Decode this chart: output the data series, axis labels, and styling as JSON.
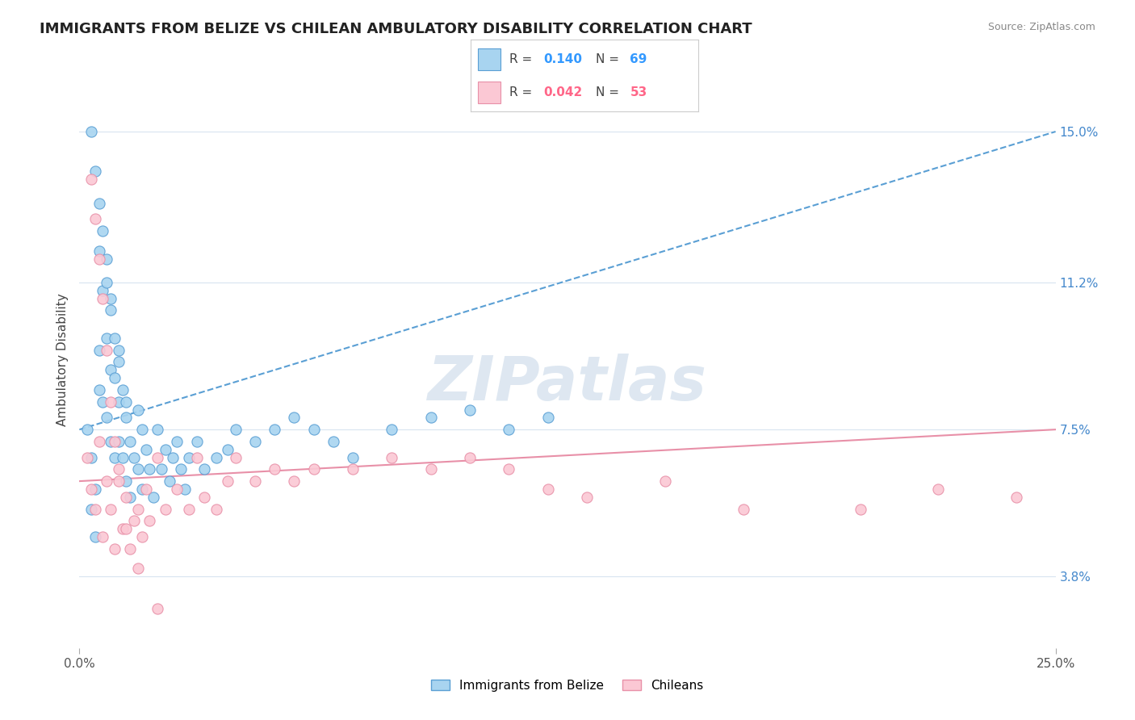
{
  "title": "IMMIGRANTS FROM BELIZE VS CHILEAN AMBULATORY DISABILITY CORRELATION CHART",
  "source": "Source: ZipAtlas.com",
  "ylabel": "Ambulatory Disability",
  "xlim": [
    0.0,
    0.25
  ],
  "ylim": [
    0.02,
    0.165
  ],
  "yticks": [
    0.038,
    0.075,
    0.112,
    0.15
  ],
  "ytick_labels": [
    "3.8%",
    "7.5%",
    "11.2%",
    "15.0%"
  ],
  "xticks": [
    0.0,
    0.25
  ],
  "xtick_labels": [
    "0.0%",
    "25.0%"
  ],
  "series1_label": "Immigrants from Belize",
  "series1_R": "0.140",
  "series1_N": "69",
  "series1_color": "#a8d4f0",
  "series1_edge": "#5a9fd4",
  "series2_label": "Chileans",
  "series2_R": "0.042",
  "series2_N": "53",
  "series2_color": "#fbc8d4",
  "series2_edge": "#e890a8",
  "bg_color": "#ffffff",
  "watermark": "ZIPatlas",
  "watermark_color": "#c8d8e8",
  "grid_color": "#d8e4f0",
  "title_fontsize": 13,
  "tick_fontsize": 11,
  "axis_label_fontsize": 11,
  "trend1_color": "#5a9fd4",
  "trend2_color": "#e890a8",
  "series1_x": [
    0.002,
    0.003,
    0.003,
    0.004,
    0.004,
    0.005,
    0.005,
    0.005,
    0.006,
    0.006,
    0.007,
    0.007,
    0.007,
    0.008,
    0.008,
    0.008,
    0.009,
    0.009,
    0.01,
    0.01,
    0.01,
    0.011,
    0.011,
    0.012,
    0.012,
    0.013,
    0.013,
    0.014,
    0.015,
    0.015,
    0.016,
    0.016,
    0.017,
    0.018,
    0.019,
    0.02,
    0.021,
    0.022,
    0.023,
    0.024,
    0.025,
    0.026,
    0.027,
    0.028,
    0.03,
    0.032,
    0.035,
    0.038,
    0.04,
    0.045,
    0.05,
    0.055,
    0.06,
    0.065,
    0.07,
    0.08,
    0.09,
    0.1,
    0.11,
    0.12,
    0.003,
    0.004,
    0.005,
    0.006,
    0.007,
    0.008,
    0.009,
    0.01,
    0.012
  ],
  "series1_y": [
    0.075,
    0.068,
    0.055,
    0.06,
    0.048,
    0.12,
    0.095,
    0.085,
    0.11,
    0.082,
    0.112,
    0.098,
    0.078,
    0.105,
    0.09,
    0.072,
    0.088,
    0.068,
    0.095,
    0.082,
    0.072,
    0.085,
    0.068,
    0.078,
    0.062,
    0.072,
    0.058,
    0.068,
    0.08,
    0.065,
    0.075,
    0.06,
    0.07,
    0.065,
    0.058,
    0.075,
    0.065,
    0.07,
    0.062,
    0.068,
    0.072,
    0.065,
    0.06,
    0.068,
    0.072,
    0.065,
    0.068,
    0.07,
    0.075,
    0.072,
    0.075,
    0.078,
    0.075,
    0.072,
    0.068,
    0.075,
    0.078,
    0.08,
    0.075,
    0.078,
    0.15,
    0.14,
    0.132,
    0.125,
    0.118,
    0.108,
    0.098,
    0.092,
    0.082
  ],
  "series2_x": [
    0.002,
    0.003,
    0.004,
    0.005,
    0.006,
    0.007,
    0.008,
    0.009,
    0.01,
    0.011,
    0.012,
    0.013,
    0.014,
    0.015,
    0.016,
    0.017,
    0.018,
    0.02,
    0.022,
    0.025,
    0.028,
    0.03,
    0.032,
    0.035,
    0.038,
    0.04,
    0.045,
    0.05,
    0.055,
    0.06,
    0.07,
    0.08,
    0.09,
    0.1,
    0.11,
    0.12,
    0.13,
    0.15,
    0.17,
    0.2,
    0.22,
    0.24,
    0.003,
    0.004,
    0.005,
    0.006,
    0.007,
    0.008,
    0.009,
    0.01,
    0.012,
    0.015,
    0.02
  ],
  "series2_y": [
    0.068,
    0.06,
    0.055,
    0.072,
    0.048,
    0.062,
    0.055,
    0.045,
    0.065,
    0.05,
    0.058,
    0.045,
    0.052,
    0.055,
    0.048,
    0.06,
    0.052,
    0.068,
    0.055,
    0.06,
    0.055,
    0.068,
    0.058,
    0.055,
    0.062,
    0.068,
    0.062,
    0.065,
    0.062,
    0.065,
    0.065,
    0.068,
    0.065,
    0.068,
    0.065,
    0.06,
    0.058,
    0.062,
    0.055,
    0.055,
    0.06,
    0.058,
    0.138,
    0.128,
    0.118,
    0.108,
    0.095,
    0.082,
    0.072,
    0.062,
    0.05,
    0.04,
    0.03
  ],
  "trend1_x": [
    0.0,
    0.25
  ],
  "trend1_y": [
    0.075,
    0.15
  ],
  "trend2_x": [
    0.0,
    0.25
  ],
  "trend2_y": [
    0.062,
    0.075
  ]
}
